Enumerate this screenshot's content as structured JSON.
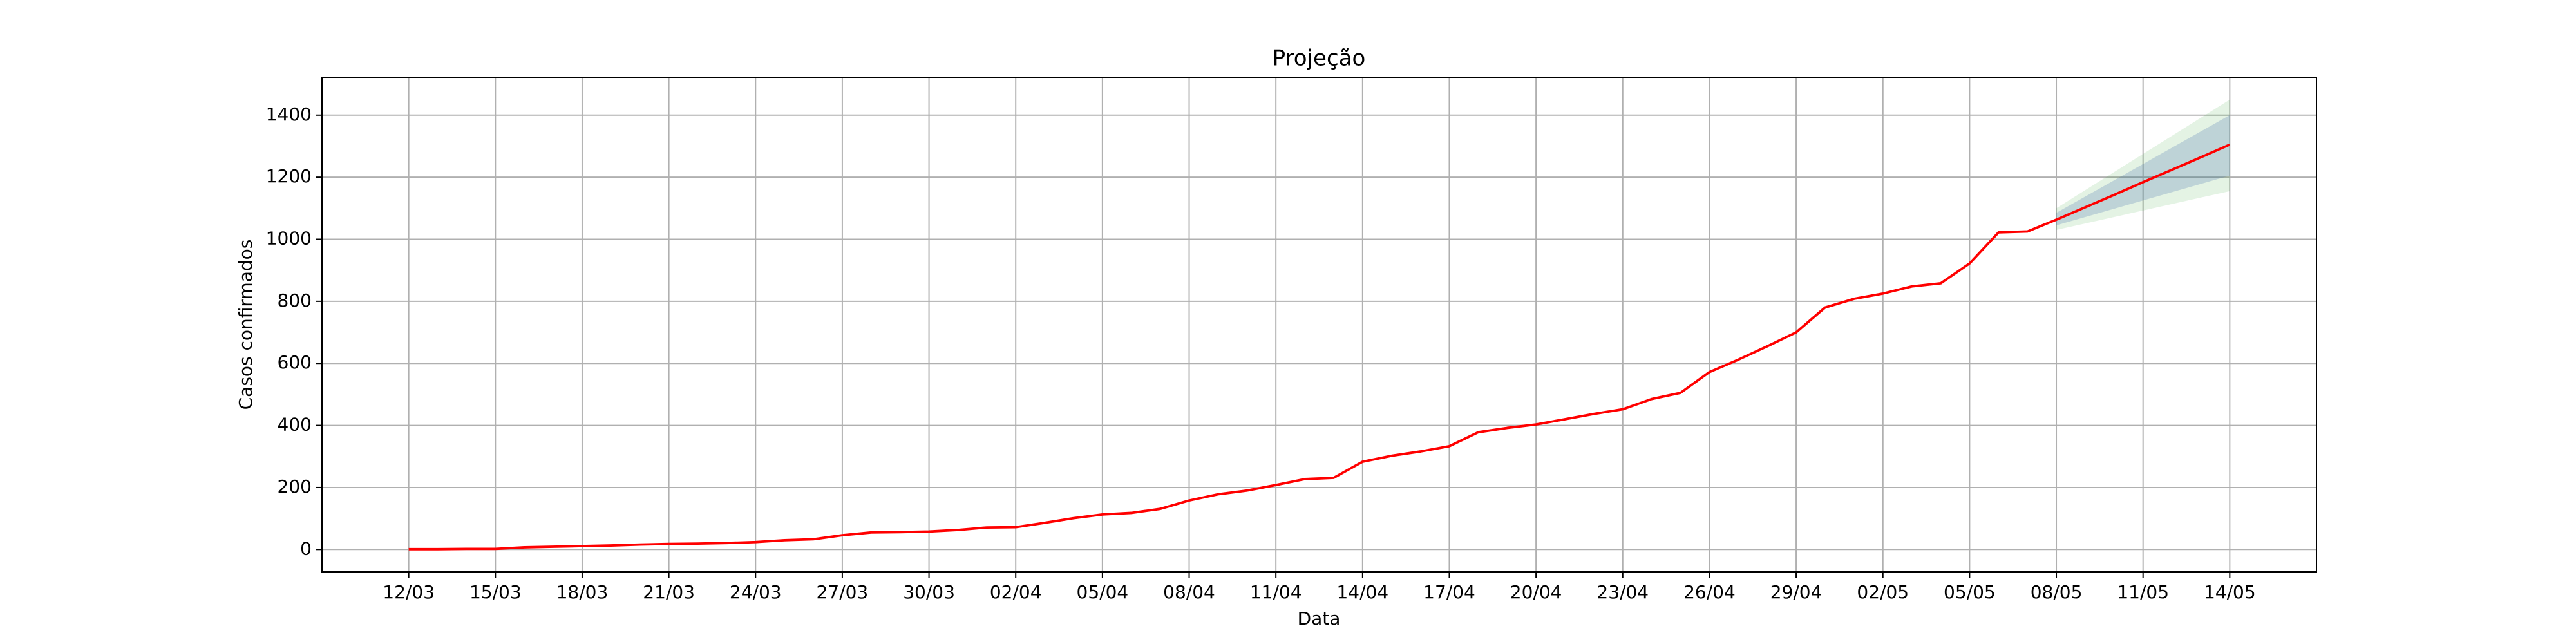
{
  "chart_data": {
    "type": "line",
    "title": "Projeção",
    "xlabel": "Data",
    "ylabel": "Casos confirmados",
    "grid": true,
    "xlim": [
      "09/03",
      "17/05"
    ],
    "ylim": [
      -72,
      1522
    ],
    "yticks": [
      0,
      200,
      400,
      600,
      800,
      1000,
      1200,
      1400
    ],
    "xticks": [
      "12/03",
      "15/03",
      "18/03",
      "21/03",
      "24/03",
      "27/03",
      "30/03",
      "02/04",
      "05/04",
      "08/04",
      "11/04",
      "14/04",
      "17/04",
      "20/04",
      "23/04",
      "26/04",
      "29/04",
      "02/05",
      "05/05",
      "08/05",
      "11/05",
      "14/05"
    ],
    "bands": [
      {
        "color": "#2ca02c",
        "opacity": 0.13,
        "x": [
          "08/05",
          "14/05"
        ],
        "lower": [
          1030,
          1155
        ],
        "upper": [
          1100,
          1450
        ]
      },
      {
        "color": "#4c72b0",
        "opacity": 0.25,
        "x": [
          "08/05",
          "14/05"
        ],
        "lower": [
          1045,
          1205
        ],
        "upper": [
          1085,
          1400
        ]
      }
    ],
    "series": [
      {
        "color": "#ff0000",
        "x": [
          "12/03",
          "13/03",
          "14/03",
          "15/03",
          "16/03",
          "17/03",
          "18/03",
          "19/03",
          "20/03",
          "21/03",
          "22/03",
          "23/03",
          "24/03",
          "25/03",
          "26/03",
          "27/03",
          "28/03",
          "29/03",
          "30/03",
          "31/03",
          "01/04",
          "02/04",
          "03/04",
          "04/04",
          "05/04",
          "06/04",
          "07/04",
          "08/04",
          "09/04",
          "10/04",
          "11/04",
          "12/04",
          "13/04",
          "14/04",
          "15/04",
          "16/04",
          "17/04",
          "18/04",
          "19/04",
          "20/04",
          "21/04",
          "22/04",
          "23/04",
          "24/04",
          "25/04",
          "26/04",
          "27/04",
          "28/04",
          "29/04",
          "30/04",
          "01/05",
          "02/05",
          "03/05",
          "04/05",
          "05/05",
          "06/05",
          "07/05",
          "08/05",
          "09/05",
          "10/05",
          "11/05",
          "12/05",
          "13/05",
          "14/05"
        ],
        "values": [
          1,
          1,
          2,
          2,
          7,
          9,
          11,
          13,
          16,
          18,
          19,
          21,
          24,
          30,
          33,
          46,
          55,
          56,
          58,
          63,
          71,
          72,
          86,
          101,
          113,
          118,
          131,
          158,
          178,
          190,
          208,
          227,
          231,
          283,
          302,
          316,
          333,
          378,
          392,
          403,
          420,
          437,
          452,
          485,
          505,
          572,
          612,
          655,
          700,
          780,
          808,
          825,
          848,
          858,
          922,
          1022,
          1025,
          1063,
          1103,
          1143,
          1184,
          1224,
          1264,
          1305
        ]
      }
    ]
  }
}
